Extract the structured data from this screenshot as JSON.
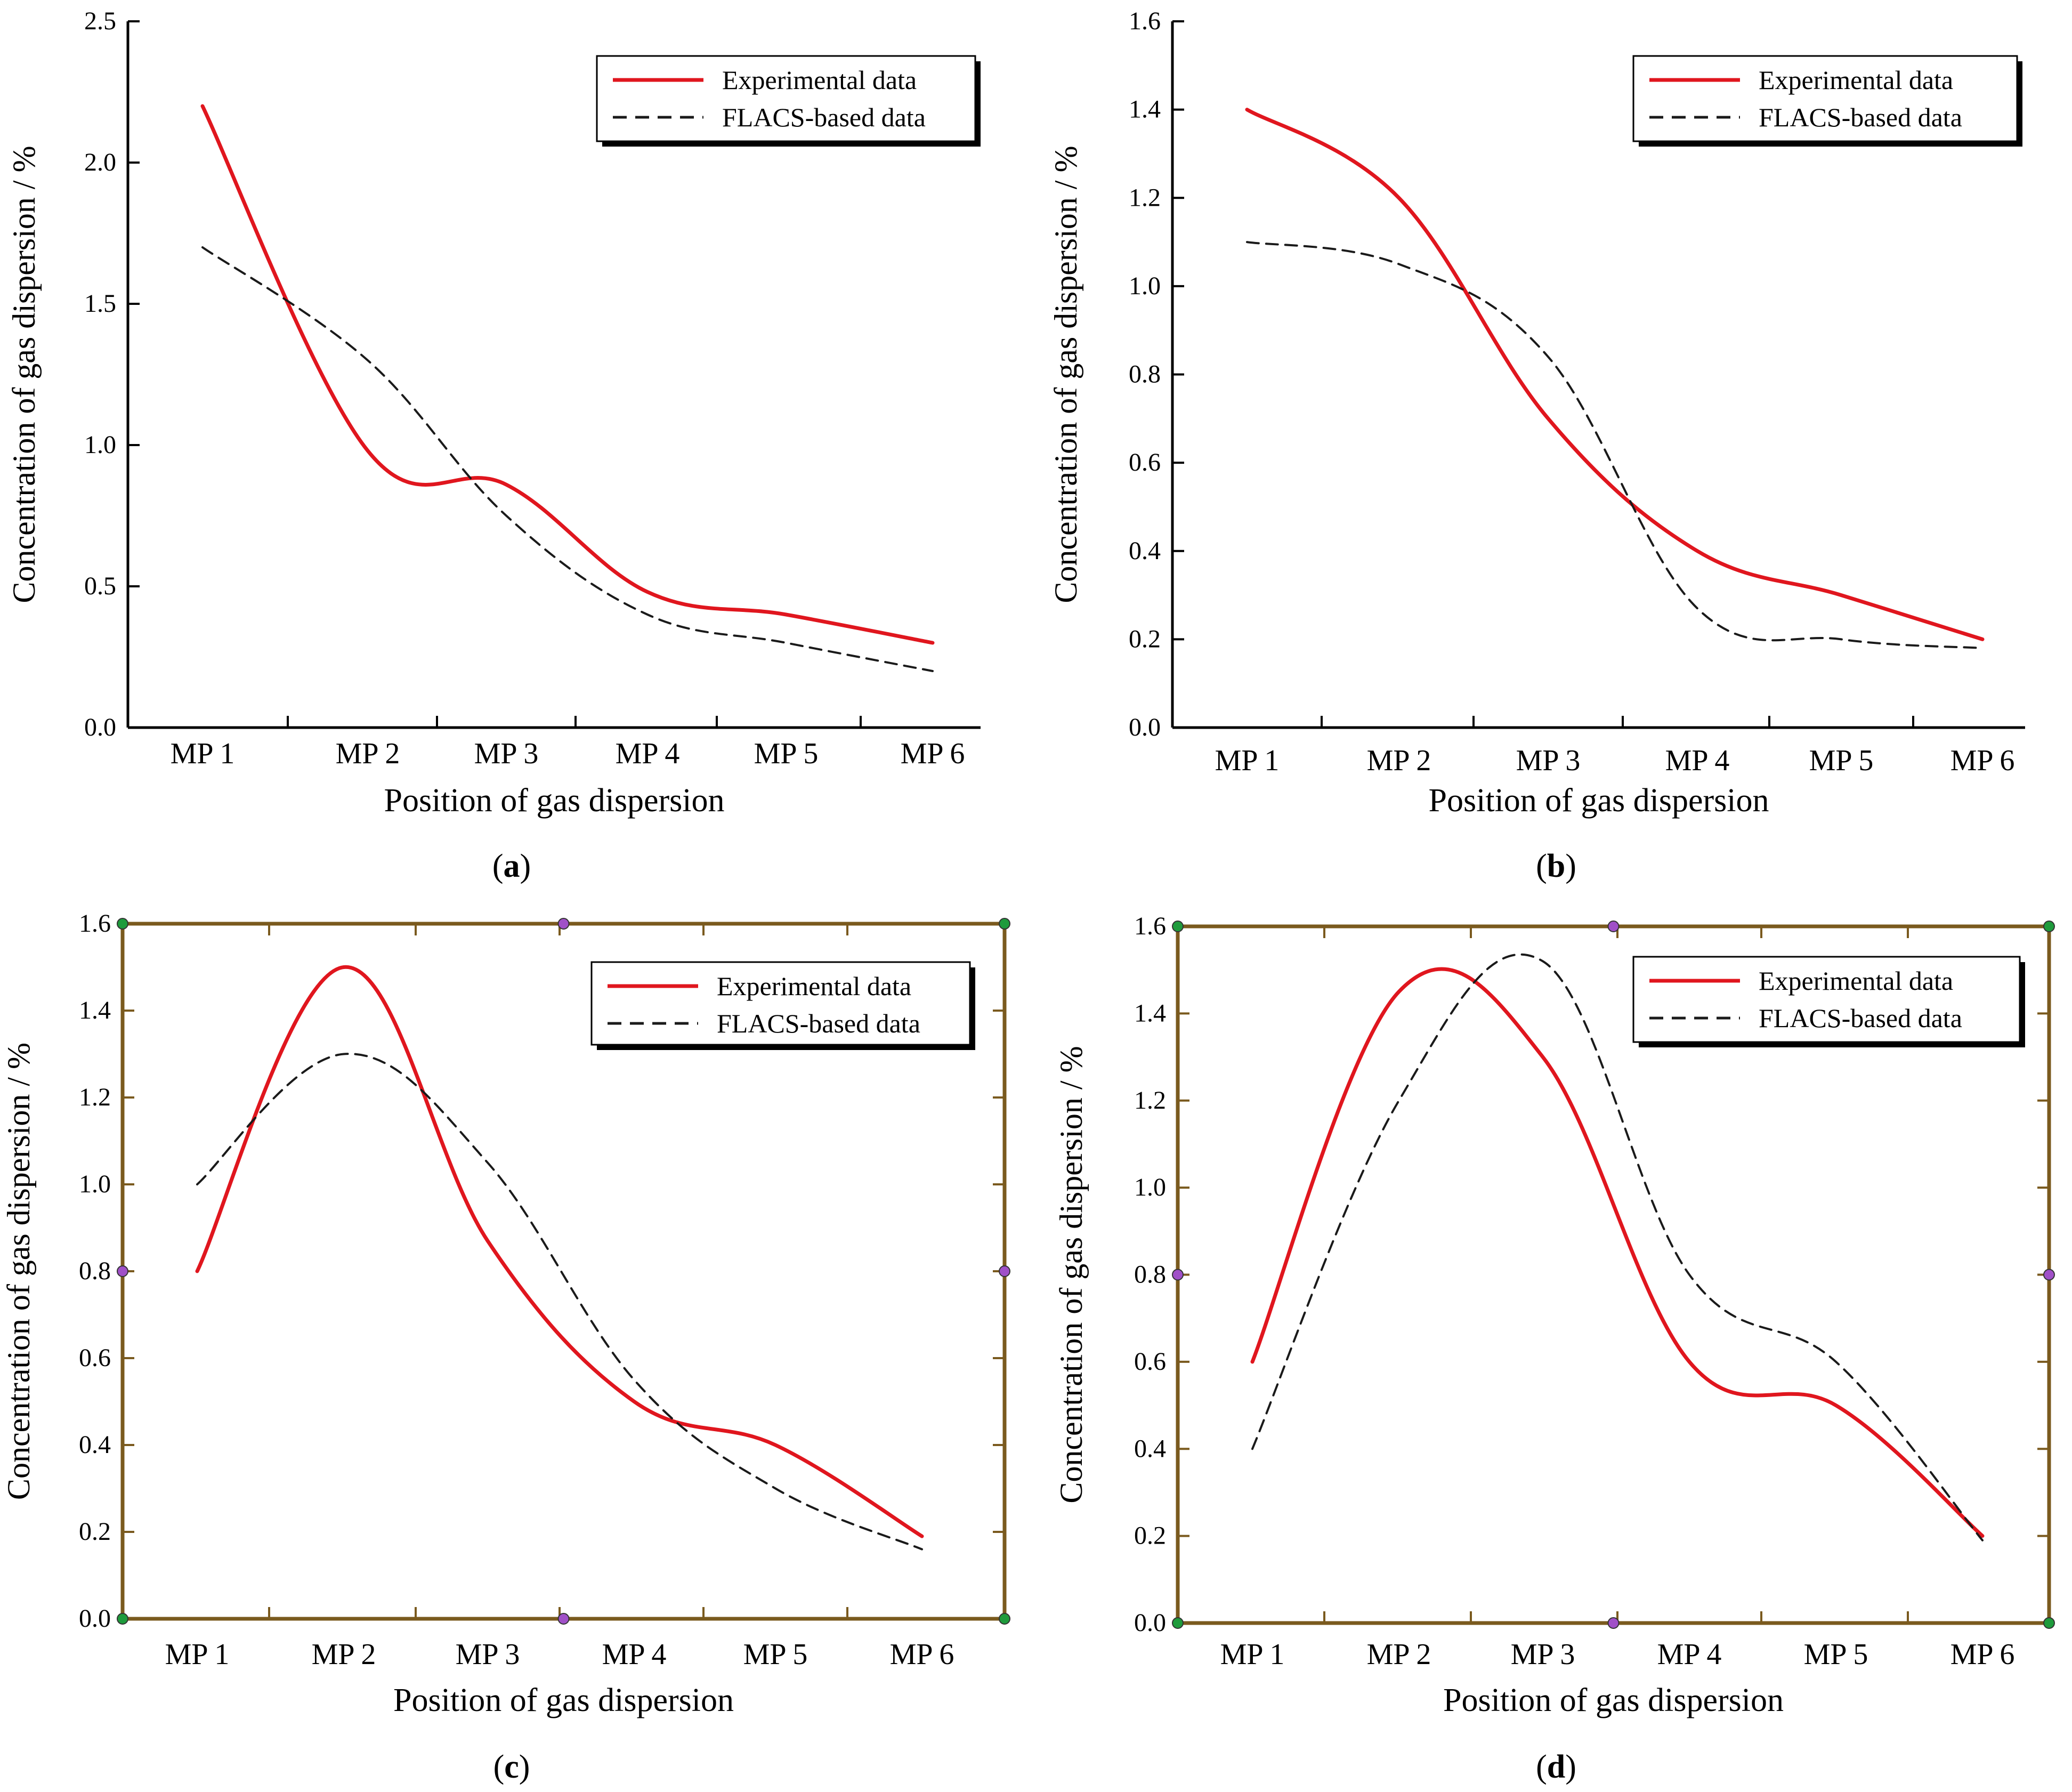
{
  "figure": {
    "captions": [
      "a",
      "b",
      "c",
      "d"
    ]
  },
  "chart_data": [
    {
      "panel": "a",
      "type": "line",
      "categories": [
        "MP 1",
        "MP 2",
        "MP 3",
        "MP 4",
        "MP 5",
        "MP 6"
      ],
      "xlabel": "Position of gas dispersion",
      "ylabel": "Concentration of gas dispersion / %",
      "ylim": [
        0,
        2.5
      ],
      "yticks": [
        0.0,
        0.5,
        1.0,
        1.5,
        2.0,
        2.5
      ],
      "ytick_labels": [
        "0.0",
        "0.5",
        "1.0",
        "1.5",
        "2.0",
        "2.5"
      ],
      "legend_position": "top-right",
      "series": [
        {
          "name": "Experimental data",
          "color": "#e0161e",
          "style": "solid",
          "values": [
            2.2,
            0.98,
            0.86,
            0.48,
            0.4,
            0.3
          ]
        },
        {
          "name": "FLACS-based data",
          "color": "#1a1a1a",
          "style": "dashed",
          "values": [
            1.7,
            1.3,
            0.75,
            0.4,
            0.3,
            0.2
          ]
        }
      ]
    },
    {
      "panel": "b",
      "type": "line",
      "categories": [
        "MP 1",
        "MP 2",
        "MP 3",
        "MP 4",
        "MP 5",
        "MP 6"
      ],
      "xlabel": "Position of gas dispersion",
      "ylabel": "Concentration of gas dispersion / %",
      "ylim": [
        0,
        1.6
      ],
      "yticks": [
        0.0,
        0.2,
        0.4,
        0.6,
        0.8,
        1.0,
        1.2,
        1.4,
        1.6
      ],
      "ytick_labels": [
        "0.0",
        "0.2",
        "0.4",
        "0.6",
        "0.8",
        "1.0",
        "1.2",
        "1.4",
        "1.6"
      ],
      "legend_position": "top-right",
      "series": [
        {
          "name": "Experimental data",
          "color": "#e0161e",
          "style": "solid",
          "values": [
            1.4,
            1.2,
            0.7,
            0.4,
            0.3,
            0.2
          ]
        },
        {
          "name": "FLACS-based data",
          "color": "#1a1a1a",
          "style": "dashed",
          "values": [
            1.1,
            1.05,
            0.84,
            0.27,
            0.2,
            0.18
          ]
        }
      ]
    },
    {
      "panel": "c",
      "type": "line",
      "categories": [
        "MP 1",
        "MP 2",
        "MP 3",
        "MP 4",
        "MP 5",
        "MP 6"
      ],
      "xlabel": "Position of gas dispersion",
      "ylabel": "Concentration of gas dispersion / %",
      "ylim": [
        0,
        1.6
      ],
      "yticks": [
        0.0,
        0.2,
        0.4,
        0.6,
        0.8,
        1.0,
        1.2,
        1.4,
        1.6
      ],
      "ytick_labels": [
        "0.0",
        "0.2",
        "0.4",
        "0.6",
        "0.8",
        "1.0",
        "1.2",
        "1.4",
        "1.6"
      ],
      "legend_position": "top-right",
      "series": [
        {
          "name": "Experimental data",
          "color": "#e0161e",
          "style": "solid",
          "values": [
            0.8,
            1.5,
            0.87,
            0.5,
            0.4,
            0.19
          ]
        },
        {
          "name": "FLACS-based data",
          "color": "#1a1a1a",
          "style": "dashed",
          "values": [
            1.0,
            1.3,
            1.05,
            0.55,
            0.3,
            0.16
          ]
        }
      ]
    },
    {
      "panel": "d",
      "type": "line",
      "categories": [
        "MP 1",
        "MP 2",
        "MP 3",
        "MP 4",
        "MP 5",
        "MP 6"
      ],
      "xlabel": "Position of gas dispersion",
      "ylabel": "Concentration of gas dispersion / %",
      "ylim": [
        0,
        1.6
      ],
      "yticks": [
        0.0,
        0.2,
        0.4,
        0.6,
        0.8,
        1.0,
        1.2,
        1.4,
        1.6
      ],
      "ytick_labels": [
        "0.0",
        "0.2",
        "0.4",
        "0.6",
        "0.8",
        "1.0",
        "1.2",
        "1.4",
        "1.6"
      ],
      "legend_position": "top-right",
      "series": [
        {
          "name": "Experimental data",
          "color": "#e0161e",
          "style": "solid",
          "values": [
            0.6,
            1.45,
            1.3,
            0.6,
            0.5,
            0.2
          ]
        },
        {
          "name": "FLACS-based data",
          "color": "#1a1a1a",
          "style": "dashed",
          "values": [
            0.4,
            1.2,
            1.52,
            0.8,
            0.6,
            0.19
          ]
        }
      ]
    }
  ],
  "colors": {
    "frame_plain": "#000000",
    "frame_brown": "#7a5a1e",
    "handle_green": "#1e9b3c",
    "handle_purple": "#a050c8"
  }
}
